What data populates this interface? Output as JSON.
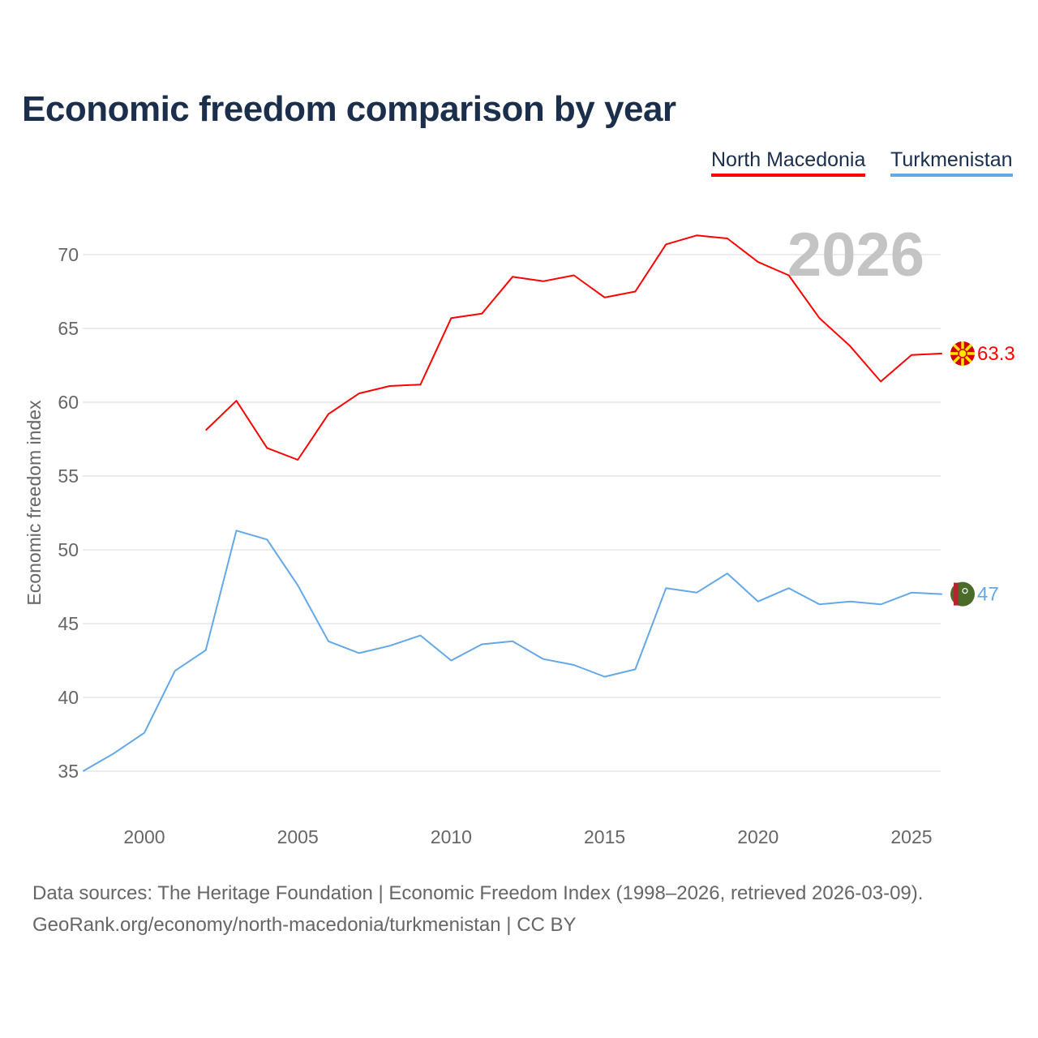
{
  "title": "Economic freedom comparison by year",
  "legend": [
    {
      "name": "North Macedonia",
      "color": "#ff0000"
    },
    {
      "name": "Turkmenistan",
      "color": "#64a8e8"
    }
  ],
  "year_watermark": "2026",
  "footer": {
    "line1": "Data sources: The Heritage Foundation | Economic Freedom Index (1998–2026, retrieved 2026-03-09).",
    "line2": "GeoRank.org/economy/north-macedonia/turkmenistan | CC BY"
  },
  "chart_data": {
    "type": "line",
    "title": "Economic freedom comparison by year",
    "xlabel": "",
    "ylabel": "Economic freedom index",
    "xlim": [
      1998,
      2026
    ],
    "ylim": [
      32,
      73
    ],
    "grid": true,
    "legend_position": "top-right",
    "x_ticks": [
      2000,
      2005,
      2010,
      2015,
      2020,
      2025
    ],
    "y_ticks": [
      35,
      40,
      45,
      50,
      55,
      60,
      65,
      70
    ],
    "series": [
      {
        "name": "North Macedonia",
        "color": "#ff0000",
        "end_label": "63.3",
        "flag_icon": "north-macedonia-flag-icon",
        "x": [
          2002,
          2003,
          2004,
          2005,
          2006,
          2007,
          2008,
          2009,
          2010,
          2011,
          2012,
          2013,
          2014,
          2015,
          2016,
          2017,
          2018,
          2019,
          2020,
          2021,
          2022,
          2023,
          2024,
          2025,
          2026
        ],
        "values": [
          58.1,
          60.1,
          56.9,
          56.1,
          59.2,
          60.6,
          61.1,
          61.2,
          65.7,
          66.0,
          68.5,
          68.2,
          68.6,
          67.1,
          67.5,
          70.7,
          71.3,
          71.1,
          69.5,
          68.6,
          65.7,
          63.8,
          61.4,
          63.2,
          63.3
        ]
      },
      {
        "name": "Turkmenistan",
        "color": "#64a8e8",
        "end_label": "47",
        "flag_icon": "turkmenistan-flag-icon",
        "x": [
          1998,
          1999,
          2000,
          2001,
          2002,
          2003,
          2004,
          2005,
          2006,
          2007,
          2008,
          2009,
          2010,
          2011,
          2012,
          2013,
          2014,
          2015,
          2016,
          2017,
          2018,
          2019,
          2020,
          2021,
          2022,
          2023,
          2024,
          2025,
          2026
        ],
        "values": [
          35.0,
          36.2,
          37.6,
          41.8,
          43.2,
          51.3,
          50.7,
          47.6,
          43.8,
          43.0,
          43.5,
          44.2,
          42.5,
          43.6,
          43.8,
          42.6,
          42.2,
          41.4,
          41.9,
          47.4,
          47.1,
          48.4,
          46.5,
          47.4,
          46.3,
          46.5,
          46.3,
          47.1,
          47.0
        ]
      }
    ]
  }
}
